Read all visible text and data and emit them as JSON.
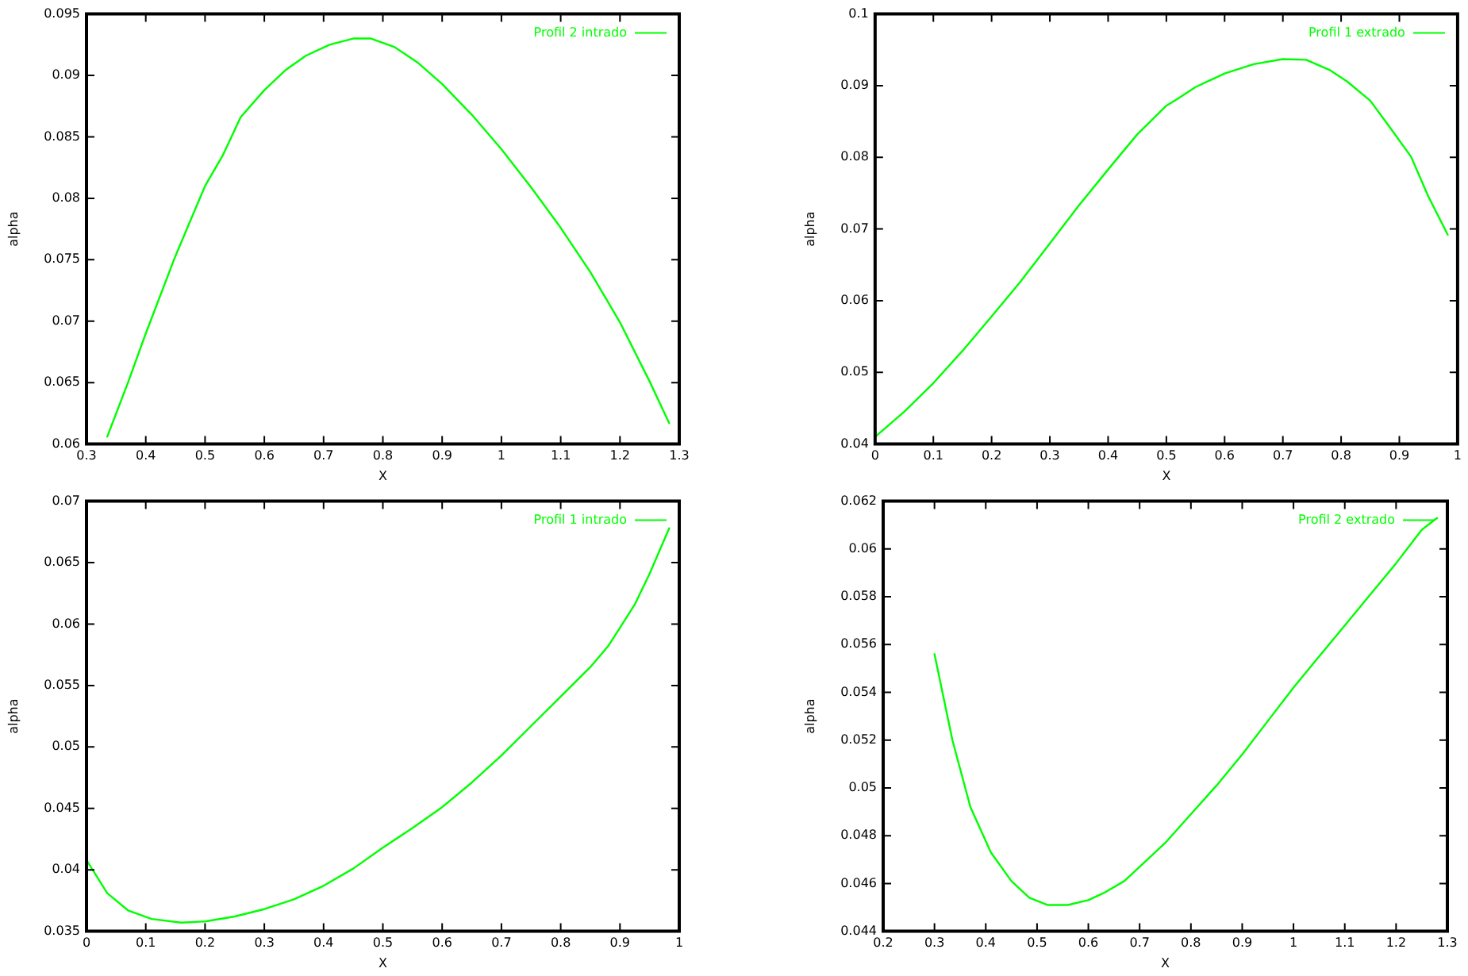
{
  "chart_data": [
    {
      "type": "line",
      "xlabel": "X",
      "ylabel": "alpha",
      "legend": "top right",
      "grid": false,
      "line_style": "solid",
      "xlim": [
        0.3,
        1.3
      ],
      "xticks": [
        0.3,
        0.4,
        0.5,
        0.6,
        0.7,
        0.8,
        0.9,
        1,
        1.1,
        1.2,
        1.3
      ],
      "ylim": [
        0.06,
        0.095
      ],
      "yticks": [
        0.06,
        0.065,
        0.07,
        0.075,
        0.08,
        0.085,
        0.09,
        0.095
      ],
      "x": [
        0.335,
        0.37,
        0.4,
        0.45,
        0.5,
        0.53,
        0.56,
        0.6,
        0.635,
        0.67,
        0.71,
        0.75,
        0.78,
        0.82,
        0.86,
        0.9,
        0.95,
        1.0,
        1.05,
        1.1,
        1.15,
        1.2,
        1.25,
        1.283
      ],
      "series": [
        {
          "name": "Profil 2 intrado",
          "color": "#00ff00",
          "values": [
            0.0606,
            0.065,
            0.069,
            0.0753,
            0.081,
            0.0835,
            0.0866,
            0.0888,
            0.0904,
            0.0916,
            0.0925,
            0.093,
            0.093,
            0.0923,
            0.091,
            0.0893,
            0.0868,
            0.084,
            0.0809,
            0.0776,
            0.074,
            0.0699,
            0.0651,
            0.0617
          ]
        }
      ]
    },
    {
      "type": "line",
      "xlabel": "X",
      "ylabel": "alpha",
      "legend": "top right",
      "grid": false,
      "line_style": "solid",
      "xlim": [
        0,
        1
      ],
      "xticks": [
        0,
        0.1,
        0.2,
        0.3,
        0.4,
        0.5,
        0.6,
        0.7,
        0.8,
        0.9,
        1
      ],
      "ylim": [
        0.04,
        0.1
      ],
      "yticks": [
        0.04,
        0.05,
        0.06,
        0.07,
        0.08,
        0.09,
        0.1
      ],
      "x": [
        0,
        0.05,
        0.1,
        0.15,
        0.2,
        0.25,
        0.3,
        0.35,
        0.4,
        0.45,
        0.5,
        0.52,
        0.55,
        0.6,
        0.65,
        0.7,
        0.74,
        0.78,
        0.81,
        0.85,
        0.88,
        0.92,
        0.95,
        0.983
      ],
      "series": [
        {
          "name": "Profil 1 extrado",
          "color": "#00ff00",
          "values": [
            0.041,
            0.0445,
            0.0485,
            0.053,
            0.0578,
            0.0627,
            0.068,
            0.0733,
            0.0783,
            0.0832,
            0.0872,
            0.0882,
            0.0898,
            0.0917,
            0.093,
            0.0937,
            0.0936,
            0.0922,
            0.0906,
            0.0879,
            0.0846,
            0.0801,
            0.0745,
            0.0692
          ]
        }
      ]
    },
    {
      "type": "line",
      "xlabel": "X",
      "ylabel": "alpha",
      "legend": "top right",
      "grid": false,
      "line_style": "solid",
      "xlim": [
        0,
        1
      ],
      "xticks": [
        0,
        0.1,
        0.2,
        0.3,
        0.4,
        0.5,
        0.6,
        0.7,
        0.8,
        0.9,
        1
      ],
      "ylim": [
        0.035,
        0.07
      ],
      "yticks": [
        0.035,
        0.04,
        0.045,
        0.05,
        0.055,
        0.06,
        0.065,
        0.07
      ],
      "x": [
        0,
        0.035,
        0.07,
        0.11,
        0.16,
        0.2,
        0.25,
        0.3,
        0.35,
        0.4,
        0.45,
        0.5,
        0.55,
        0.6,
        0.65,
        0.7,
        0.75,
        0.8,
        0.85,
        0.88,
        0.9,
        0.925,
        0.95,
        0.983
      ],
      "series": [
        {
          "name": "Profil 1 intrado",
          "color": "#00ff00",
          "values": [
            0.0408,
            0.0381,
            0.0367,
            0.036,
            0.0357,
            0.0358,
            0.0362,
            0.0368,
            0.0376,
            0.0387,
            0.0401,
            0.0418,
            0.0434,
            0.0451,
            0.0471,
            0.0493,
            0.0517,
            0.0541,
            0.0565,
            0.0582,
            0.0597,
            0.0616,
            0.0641,
            0.0678
          ]
        }
      ]
    },
    {
      "type": "line",
      "xlabel": "X",
      "ylabel": "alpha",
      "legend": "top right",
      "grid": false,
      "line_style": "solid",
      "xlim": [
        0.2,
        1.3
      ],
      "xticks": [
        0.2,
        0.3,
        0.4,
        0.5,
        0.6,
        0.7,
        0.8,
        0.9,
        1,
        1.1,
        1.2,
        1.3
      ],
      "ylim": [
        0.044,
        0.062
      ],
      "yticks": [
        0.044,
        0.046,
        0.048,
        0.05,
        0.052,
        0.054,
        0.056,
        0.058,
        0.06,
        0.062
      ],
      "x": [
        0.3,
        0.335,
        0.37,
        0.41,
        0.45,
        0.485,
        0.52,
        0.56,
        0.6,
        0.63,
        0.67,
        0.7,
        0.75,
        0.8,
        0.85,
        0.9,
        0.95,
        1.0,
        1.05,
        1.1,
        1.15,
        1.2,
        1.25,
        1.28
      ],
      "series": [
        {
          "name": "Profil 2 extrado",
          "color": "#00ff00",
          "values": [
            0.0556,
            0.052,
            0.0492,
            0.0473,
            0.0461,
            0.0454,
            0.0451,
            0.0451,
            0.0453,
            0.0456,
            0.0461,
            0.0467,
            0.0477,
            0.0489,
            0.0501,
            0.0514,
            0.0528,
            0.0542,
            0.0555,
            0.0568,
            0.0581,
            0.0594,
            0.0608,
            0.0613
          ]
        }
      ]
    }
  ]
}
